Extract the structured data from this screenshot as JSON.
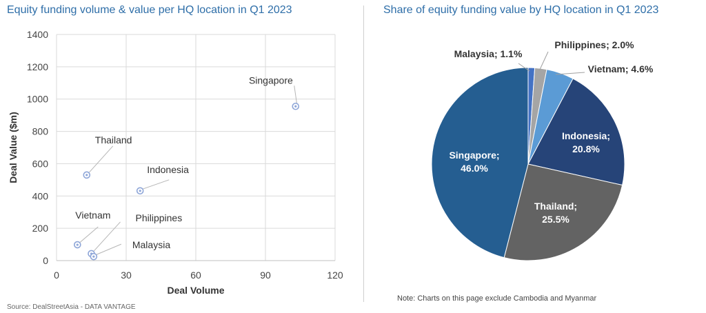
{
  "left_title": "Equity funding volume & value per HQ location in Q1 2023",
  "right_title": "Share of equity funding value by HQ location in Q1 2023",
  "source": "Source: DealStreetAsia - DATA VANTAGE",
  "note": "Note: Charts on this page exclude Cambodia and Myanmar",
  "colors": {
    "title": "#2e6ea8",
    "marker": "#8ea6d8",
    "grid": "#d9d9d9"
  },
  "chart_data": [
    {
      "type": "scatter",
      "title": "Equity funding volume & value per HQ location in Q1 2023",
      "xlabel": "Deal Volume",
      "ylabel": "Deal Value ($m)",
      "xlim": [
        0,
        120
      ],
      "ylim": [
        0,
        1400
      ],
      "xticks": [
        0,
        30,
        60,
        90,
        120
      ],
      "yticks": [
        0,
        200,
        400,
        600,
        800,
        1000,
        1200,
        1400
      ],
      "grid": true,
      "points": [
        {
          "label": "Singapore",
          "x": 103,
          "y": 955
        },
        {
          "label": "Thailand",
          "x": 13,
          "y": 530
        },
        {
          "label": "Indonesia",
          "x": 36,
          "y": 432
        },
        {
          "label": "Vietnam",
          "x": 9,
          "y": 98
        },
        {
          "label": "Philippines",
          "x": 15,
          "y": 43
        },
        {
          "label": "Malaysia",
          "x": 16,
          "y": 25
        }
      ]
    },
    {
      "type": "pie",
      "title": "Share of equity funding value by HQ location in Q1 2023",
      "unit": "%",
      "slices": [
        {
          "label": "Malaysia",
          "value": 1.1,
          "color": "#4472c4",
          "text": "Malaysia; 1.1%"
        },
        {
          "label": "Philippines",
          "value": 2.0,
          "color": "#a5a5a5",
          "text": "Philippines; 2.0%"
        },
        {
          "label": "Vietnam",
          "value": 4.6,
          "color": "#5b9bd5",
          "text": "Vietnam; 4.6%"
        },
        {
          "label": "Indonesia",
          "value": 20.8,
          "color": "#264478",
          "text": "Indonesia;",
          "text2": "20.8%"
        },
        {
          "label": "Thailand",
          "value": 25.5,
          "color": "#636363",
          "text": "Thailand;",
          "text2": "25.5%"
        },
        {
          "label": "Singapore",
          "value": 46.0,
          "color": "#255e91",
          "text": "Singapore;",
          "text2": "46.0%"
        }
      ]
    }
  ]
}
